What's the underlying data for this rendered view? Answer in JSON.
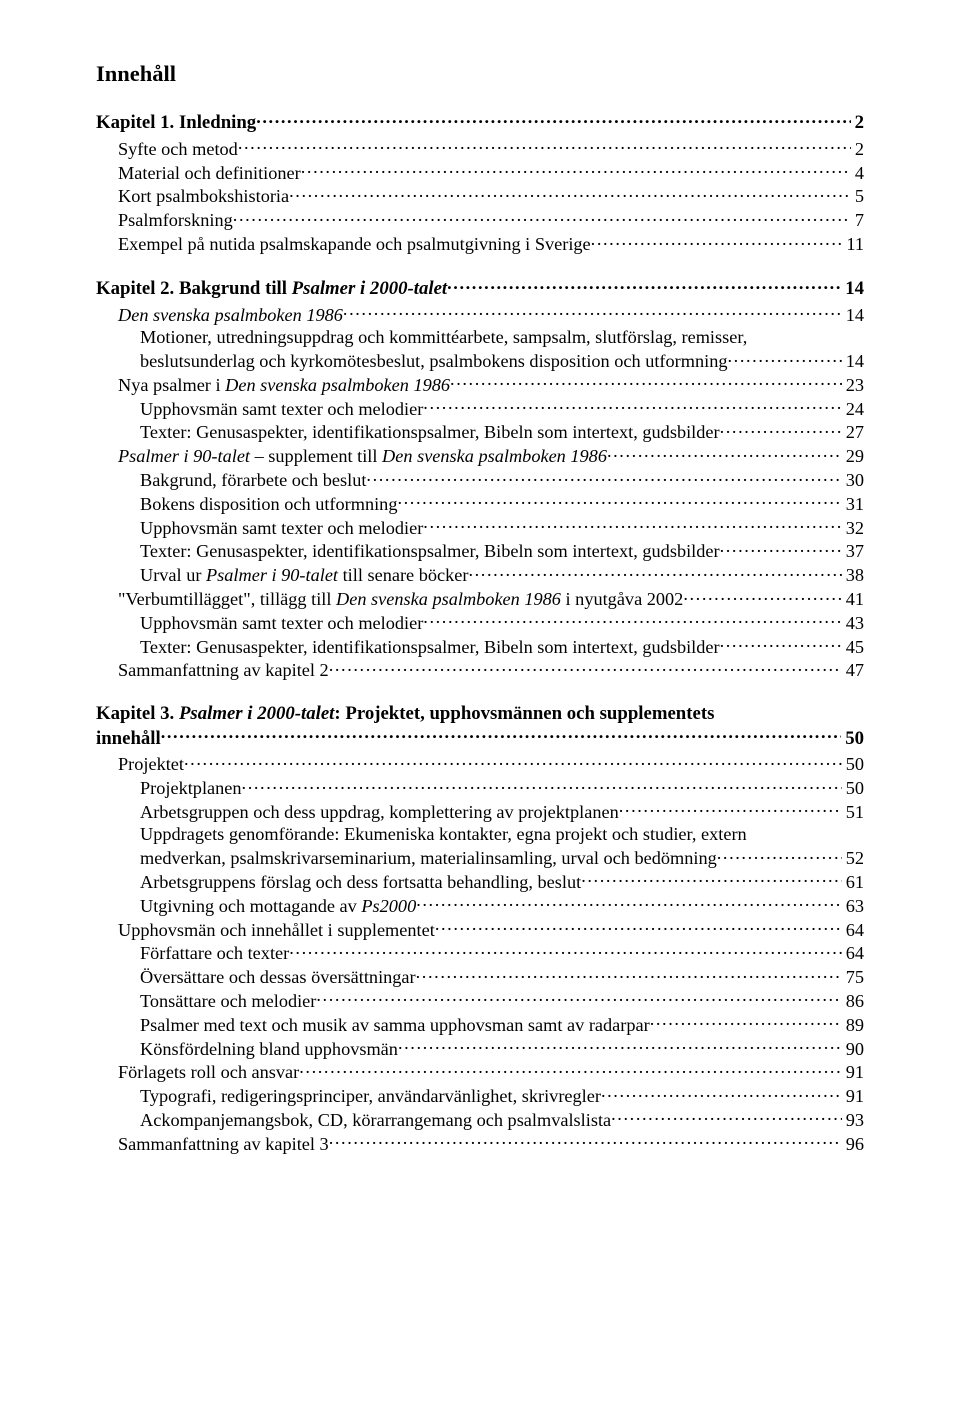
{
  "title": "Innehåll",
  "ch1": {
    "heading_label": "Kapitel 1. Inledning",
    "page": "2",
    "rows": [
      {
        "label": "Syfte och metod",
        "page": "2",
        "indent": 1
      },
      {
        "label": "Material och definitioner",
        "page": "4",
        "indent": 1
      },
      {
        "label": "Kort psalmbokshistoria",
        "page": "5",
        "indent": 1
      },
      {
        "label": "Psalmforskning",
        "page": "7",
        "indent": 1
      },
      {
        "label": "Exempel på nutida psalmskapande och psalmutgivning i Sverige",
        "page": "11",
        "indent": 1
      }
    ]
  },
  "ch2": {
    "heading_prefix": "Kapitel 2. Bakgrund till ",
    "heading_italic": "Psalmer i 2000-talet",
    "page": "14",
    "rows": [
      {
        "label": "Den svenska psalmboken 1986",
        "page": "14",
        "indent": 1,
        "italic": true
      },
      {
        "label": "Motioner, utredningsuppdrag och kommittéarbete, sampsalm, slutförslag, remisser,",
        "cont": true,
        "indent": 2
      },
      {
        "label": "beslutsunderlag och kyrkomötesbeslut, psalmbokens disposition och utformning",
        "page": "14",
        "indent": 2
      },
      {
        "label_pre": "Nya psalmer i ",
        "label_italic": "Den svenska psalmboken 1986",
        "page": "23",
        "indent": 1
      },
      {
        "label": "Upphovsmän samt texter och melodier",
        "page": "24",
        "indent": 2
      },
      {
        "label": "Texter: Genusaspekter, identifikationspsalmer, Bibeln som intertext, gudsbilder",
        "page": "27",
        "indent": 2
      },
      {
        "label_italic": "Psalmer i 90-talet – ",
        "label_post_italic": "supplement till ",
        "label_italic2": "Den svenska psalmboken 1986",
        "page": "29",
        "indent": 1,
        "mixed": true
      },
      {
        "label": "Bakgrund, förarbete och beslut",
        "page": "30",
        "indent": 2
      },
      {
        "label": "Bokens disposition och utformning",
        "page": "31",
        "indent": 2
      },
      {
        "label": "Upphovsmän samt texter och melodier",
        "page": "32",
        "indent": 2
      },
      {
        "label": "Texter: Genusaspekter, identifikationspsalmer, Bibeln som intertext, gudsbilder",
        "page": "37",
        "indent": 2
      },
      {
        "label_pre": "Urval ur ",
        "label_italic": "Psalmer i 90-talet",
        "label_post": " till senare böcker",
        "page": "38",
        "indent": 2
      },
      {
        "label_pre": "\"Verbumtillägget\", tillägg till ",
        "label_italic": "Den svenska psalmboken 1986",
        "label_post": " i nyutgåva 2002",
        "page": "41",
        "indent": 1
      },
      {
        "label": "Upphovsmän samt texter och melodier",
        "page": "43",
        "indent": 2
      },
      {
        "label": "Texter: Genusaspekter, identifikationspsalmer, Bibeln som intertext, gudsbilder",
        "page": "45",
        "indent": 2
      },
      {
        "label": "Sammanfattning av kapitel 2",
        "page": "47",
        "indent": 1
      }
    ]
  },
  "ch3": {
    "heading_prefix": "Kapitel 3. ",
    "heading_italic": "Psalmer i 2000-talet",
    "heading_suffix": ": Projektet, upphovsmännen och supplementets",
    "heading_line2": "innehåll",
    "page": "50",
    "rows": [
      {
        "label": "Projektet",
        "page": "50",
        "indent": 1
      },
      {
        "label": "Projektplanen",
        "page": "50",
        "indent": 2
      },
      {
        "label": "Arbetsgruppen och dess uppdrag, komplettering av projektplanen",
        "page": "51",
        "indent": 2
      },
      {
        "label": "Uppdragets genomförande: Ekumeniska kontakter, egna projekt och studier, extern",
        "cont": true,
        "indent": 2
      },
      {
        "label": "medverkan, psalmskrivarseminarium, materialinsamling, urval och bedömning",
        "page": "52",
        "indent": 2
      },
      {
        "label": "Arbetsgruppens förslag och dess fortsatta behandling, beslut",
        "page": "61",
        "indent": 2
      },
      {
        "label_pre": "Utgivning och mottagande av ",
        "label_italic": "Ps2000",
        "page": "63",
        "indent": 2
      },
      {
        "label": "Upphovsmän och innehållet i supplementet",
        "page": "64",
        "indent": 1
      },
      {
        "label": "Författare och texter",
        "page": "64",
        "indent": 2
      },
      {
        "label": "Översättare och dessas översättningar",
        "page": "75",
        "indent": 2
      },
      {
        "label": "Tonsättare och melodier",
        "page": "86",
        "indent": 2
      },
      {
        "label": "Psalmer med text och musik av samma upphovsman samt av radarpar",
        "page": "89",
        "indent": 2
      },
      {
        "label": "Könsfördelning bland upphovsmän",
        "page": "90",
        "indent": 2
      },
      {
        "label": "Förlagets roll och ansvar",
        "page": "91",
        "indent": 1
      },
      {
        "label": "Typografi, redigeringsprinciper, användarvänlighet, skrivregler",
        "page": "91",
        "indent": 2
      },
      {
        "label": "Ackompanjemangsbok, CD, körarrangemang och psalmvalslista",
        "page": "93",
        "indent": 2
      },
      {
        "label": "Sammanfattning av kapitel 3",
        "page": "96",
        "indent": 1
      }
    ]
  }
}
